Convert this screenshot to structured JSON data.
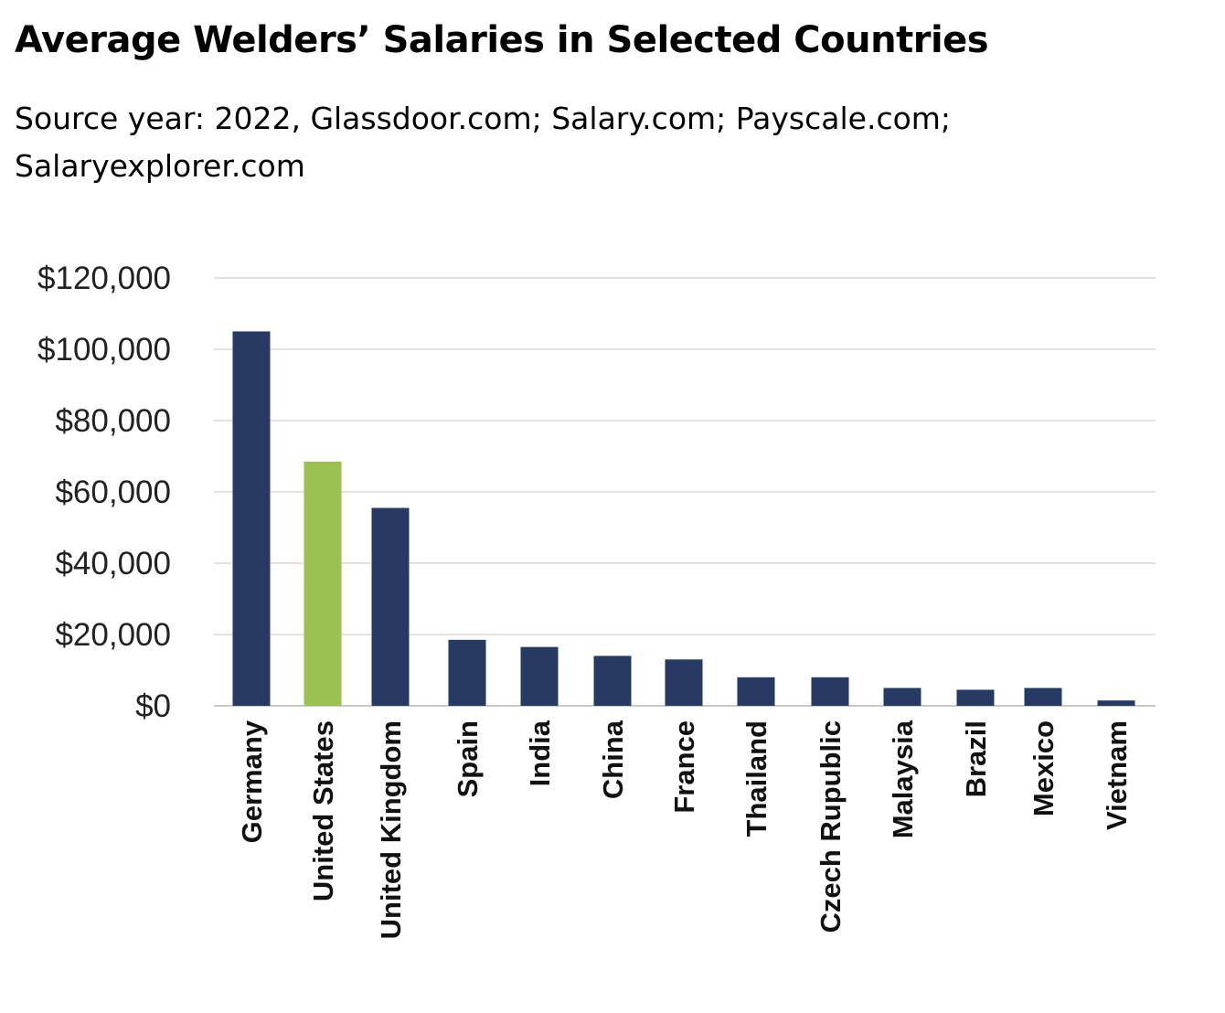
{
  "chart_data": {
    "type": "bar",
    "title": "Average Welders’ Salaries in Selected Countries",
    "subtitle": "Source year: 2022, Glassdoor.com; Salary.com; Payscale.com; Salaryexplorer.com",
    "categories": [
      "Germany",
      "United States",
      "United Kingdom",
      "Spain",
      "India",
      "China",
      "France",
      "Thailand",
      "Czech Rupublic",
      "Malaysia",
      "Brazil",
      "Mexico",
      "Vietnam"
    ],
    "values": [
      105000,
      68500,
      55500,
      18500,
      16500,
      14000,
      13000,
      8000,
      8000,
      5000,
      4500,
      5000,
      1500
    ],
    "bar_colors": [
      "#263a63",
      "#9cc152",
      "#263a63",
      "#263a63",
      "#263a63",
      "#263a63",
      "#263a63",
      "#263a63",
      "#263a63",
      "#263a63",
      "#263a63",
      "#263a63",
      "#263a63"
    ],
    "ylim": [
      0,
      120000
    ],
    "yticks": [
      0,
      20000,
      40000,
      60000,
      80000,
      100000,
      120000
    ],
    "ytick_labels": [
      "$0",
      "$20,000",
      "$40,000",
      "$60,000",
      "$80,000",
      "$100,000",
      "$120,000"
    ],
    "xlabel": "",
    "ylabel": "",
    "grid": true,
    "legend": "none"
  }
}
